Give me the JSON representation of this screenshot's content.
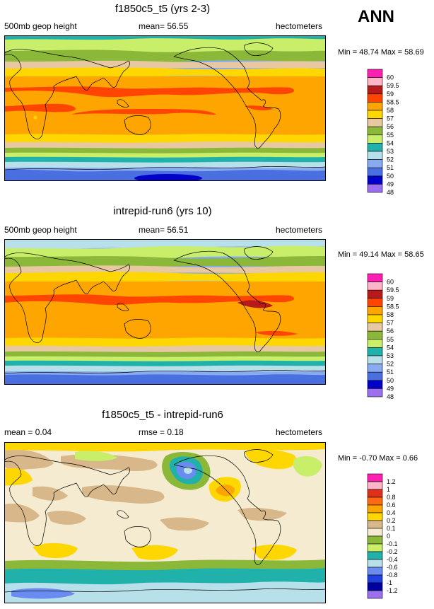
{
  "season": "ANN",
  "panels": [
    {
      "title": "f1850c5_t5 (yrs 2-3)",
      "left_label": "500mb geop height",
      "center_label": "mean=  56.55",
      "units": "hectometers",
      "minmax": "Min =  48.74 Max =  58.69",
      "levels": [
        "60",
        "59.5",
        "59",
        "58.5",
        "58",
        "57",
        "56",
        "55",
        "54",
        "53",
        "52",
        "51",
        "50",
        "49",
        "48"
      ],
      "colors": [
        "#ff1fb0",
        "#ffb5c8",
        "#b71a1a",
        "#ff4500",
        "#ffa500",
        "#ffd700",
        "#e8c8a0",
        "#8cb83a",
        "#c8ee6a",
        "#20b2aa",
        "#b8e0ea",
        "#87aaf0",
        "#4a6fe0",
        "#0000c8",
        "#9b70ee"
      ]
    },
    {
      "title": "intrepid-run6 (yrs 10)",
      "left_label": "500mb geop height",
      "center_label": "mean=  56.51",
      "units": "hectometers",
      "minmax": "Min =  49.14 Max =  58.65",
      "levels": [
        "60",
        "59.5",
        "59",
        "58.5",
        "58",
        "57",
        "56",
        "55",
        "54",
        "53",
        "52",
        "51",
        "50",
        "49",
        "48"
      ],
      "colors": [
        "#ff1fb0",
        "#ffb5c8",
        "#b71a1a",
        "#ff4500",
        "#ffa500",
        "#ffd700",
        "#e8c8a0",
        "#8cb83a",
        "#c8ee6a",
        "#20b2aa",
        "#b8e0ea",
        "#87aaf0",
        "#4a6fe0",
        "#0000c8",
        "#9b70ee"
      ]
    },
    {
      "title": "f1850c5_t5 - intrepid-run6",
      "left_label": "mean =  0.04",
      "center_label": "rmse =  0.18",
      "units": "hectometers",
      "minmax": "Min = -0.70 Max =  0.66",
      "levels": [
        "1.2",
        "1",
        "0.8",
        "0.6",
        "0.4",
        "0.2",
        "0.1",
        "0",
        "-0.1",
        "-0.2",
        "-0.4",
        "-0.6",
        "-0.8",
        "-1",
        "-1.2"
      ],
      "colors": [
        "#ff1fb0",
        "#ffb5c8",
        "#e0301a",
        "#ff6a10",
        "#ffa500",
        "#ffd700",
        "#d8b88a",
        "#f5ebd0",
        "#8cb83a",
        "#c8ee6a",
        "#20b2aa",
        "#b8e0ea",
        "#6a8cf0",
        "#2040e0",
        "#0000a0",
        "#9b70ee"
      ]
    }
  ],
  "chart_data": [
    {
      "type": "heatmap",
      "title": "f1850c5_t5 (yrs 2-3)",
      "variable": "500mb geop height",
      "units": "hectometers",
      "mean": 56.55,
      "min": 48.74,
      "max": 58.69,
      "contour_levels": [
        48,
        49,
        50,
        51,
        52,
        53,
        54,
        55,
        56,
        57,
        58,
        58.5,
        59,
        59.5,
        60
      ],
      "band_levels_by_latitude": {
        "north_pole": 52,
        "north_midlat": 55,
        "tropics": 58.5,
        "south_midlat": 54,
        "south_pole": 49
      }
    },
    {
      "type": "heatmap",
      "title": "intrepid-run6 (yrs 10)",
      "variable": "500mb geop height",
      "units": "hectometers",
      "mean": 56.51,
      "min": 49.14,
      "max": 58.65,
      "contour_levels": [
        48,
        49,
        50,
        51,
        52,
        53,
        54,
        55,
        56,
        57,
        58,
        58.5,
        59,
        59.5,
        60
      ],
      "band_levels_by_latitude": {
        "north_pole": 52,
        "north_midlat": 55,
        "tropics": 58,
        "south_midlat": 54,
        "south_pole": 50
      }
    },
    {
      "type": "heatmap",
      "title": "f1850c5_t5 - intrepid-run6",
      "units": "hectometers",
      "mean": 0.04,
      "rmse": 0.18,
      "min": -0.7,
      "max": 0.66,
      "contour_levels": [
        -1.2,
        -1,
        -0.8,
        -0.6,
        -0.4,
        -0.2,
        -0.1,
        0,
        0.1,
        0.2,
        0.4,
        0.6,
        0.8,
        1,
        1.2
      ]
    }
  ]
}
